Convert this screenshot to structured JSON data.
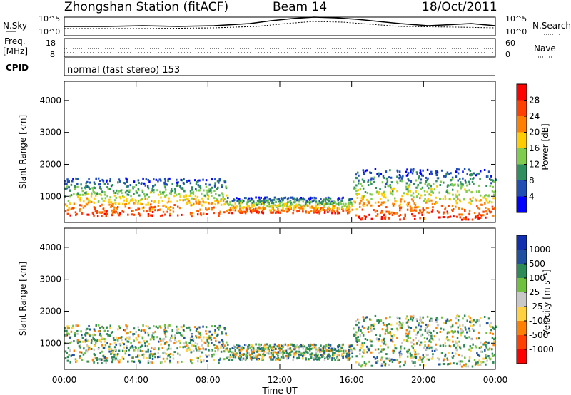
{
  "header": {
    "title": "Zhongshan Station (fitACF)",
    "beam": "Beam 14",
    "date": "18/Oct/2011"
  },
  "panels": {
    "noise": {
      "left_label": "N.Sky",
      "right_label": "N.Search",
      "left_ticks": [
        "10^5",
        "10^0"
      ],
      "right_ticks": [
        "10^5",
        "10^0"
      ]
    },
    "freq": {
      "left_label": "Freq.",
      "left_unit": "[MHz]",
      "right_label": "Nave",
      "left_ticks": [
        "18",
        "8"
      ],
      "right_ticks": [
        "60",
        "0"
      ]
    },
    "cpid": {
      "label": "CPID",
      "text": "normal (fast stereo) 153"
    }
  },
  "chart_data": [
    {
      "type": "heatmap",
      "name": "power",
      "ylabel": "Slant Range [km]",
      "yticks": [
        1000,
        2000,
        3000,
        4000
      ],
      "ylim": [
        180,
        4600
      ],
      "xlim_hours": [
        0,
        24
      ],
      "colorbar": {
        "label": "Power [dB]",
        "ticks": [
          "4",
          "8",
          "12",
          "16",
          "20",
          "24",
          "28"
        ],
        "colors": [
          "#0000ff",
          "#1f4fb4",
          "#2f8f5f",
          "#7fcc4f",
          "#ffcc00",
          "#ff8000",
          "#ff4000",
          "#ff0000"
        ]
      }
    },
    {
      "type": "heatmap",
      "name": "velocity",
      "ylabel": "Slant Range [km]",
      "yticks": [
        1000,
        2000,
        3000,
        4000
      ],
      "ylim": [
        180,
        4600
      ],
      "xlim_hours": [
        0,
        24
      ],
      "colorbar": {
        "label": "Velocity [m s⁻¹]",
        "ticks": [
          "1000",
          "500",
          "100",
          "25",
          "-25",
          "-100",
          "-500",
          "-1000"
        ],
        "colors": [
          "#1030b0",
          "#2050a0",
          "#2e8b57",
          "#70c040",
          "#c8c8c8",
          "#ffd040",
          "#ff8000",
          "#ff4000",
          "#ff0000"
        ]
      }
    }
  ],
  "xaxis": {
    "ticks": [
      "00:00",
      "04:00",
      "08:00",
      "12:00",
      "16:00",
      "20:00",
      "00:00"
    ],
    "label": "Time UT"
  }
}
